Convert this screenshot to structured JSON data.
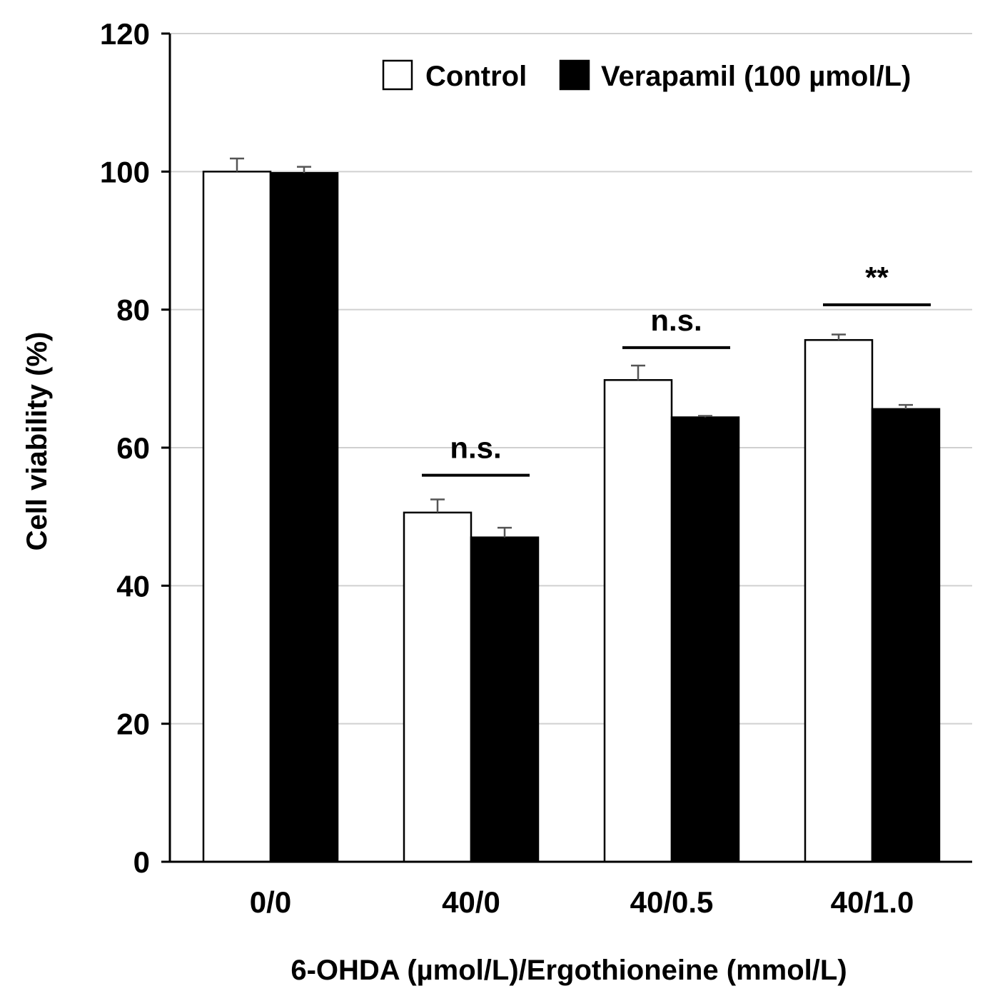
{
  "chart_data": {
    "type": "bar",
    "title": "",
    "xlabel": "6-OHDA (µmol/L)/Ergothioneine (mmol/L)",
    "ylabel": "Cell viability (%)",
    "ylim": [
      0,
      120
    ],
    "yticks": [
      0,
      20,
      40,
      60,
      80,
      100,
      120
    ],
    "grid": true,
    "legend_position": "top-right",
    "categories": [
      "0/0",
      "40/0",
      "40/0.5",
      "40/1.0"
    ],
    "series": [
      {
        "name": "Control",
        "color": "#ffffff",
        "values": [
          100.0,
          50.6,
          69.8,
          75.6
        ],
        "errors": [
          1.9,
          1.9,
          2.1,
          0.8
        ]
      },
      {
        "name": "Verapamil (100 µmol/L)",
        "color": "#000000",
        "values": [
          99.8,
          47.0,
          64.4,
          65.6
        ],
        "errors": [
          0.9,
          1.4,
          0.2,
          0.6
        ]
      }
    ],
    "annotations": [
      {
        "category_index": 1,
        "label": "n.s.",
        "line_y": 56
      },
      {
        "category_index": 2,
        "label": "n.s.",
        "line_y": 74.5
      },
      {
        "category_index": 3,
        "label": "**",
        "line_y": 80.7
      }
    ]
  }
}
